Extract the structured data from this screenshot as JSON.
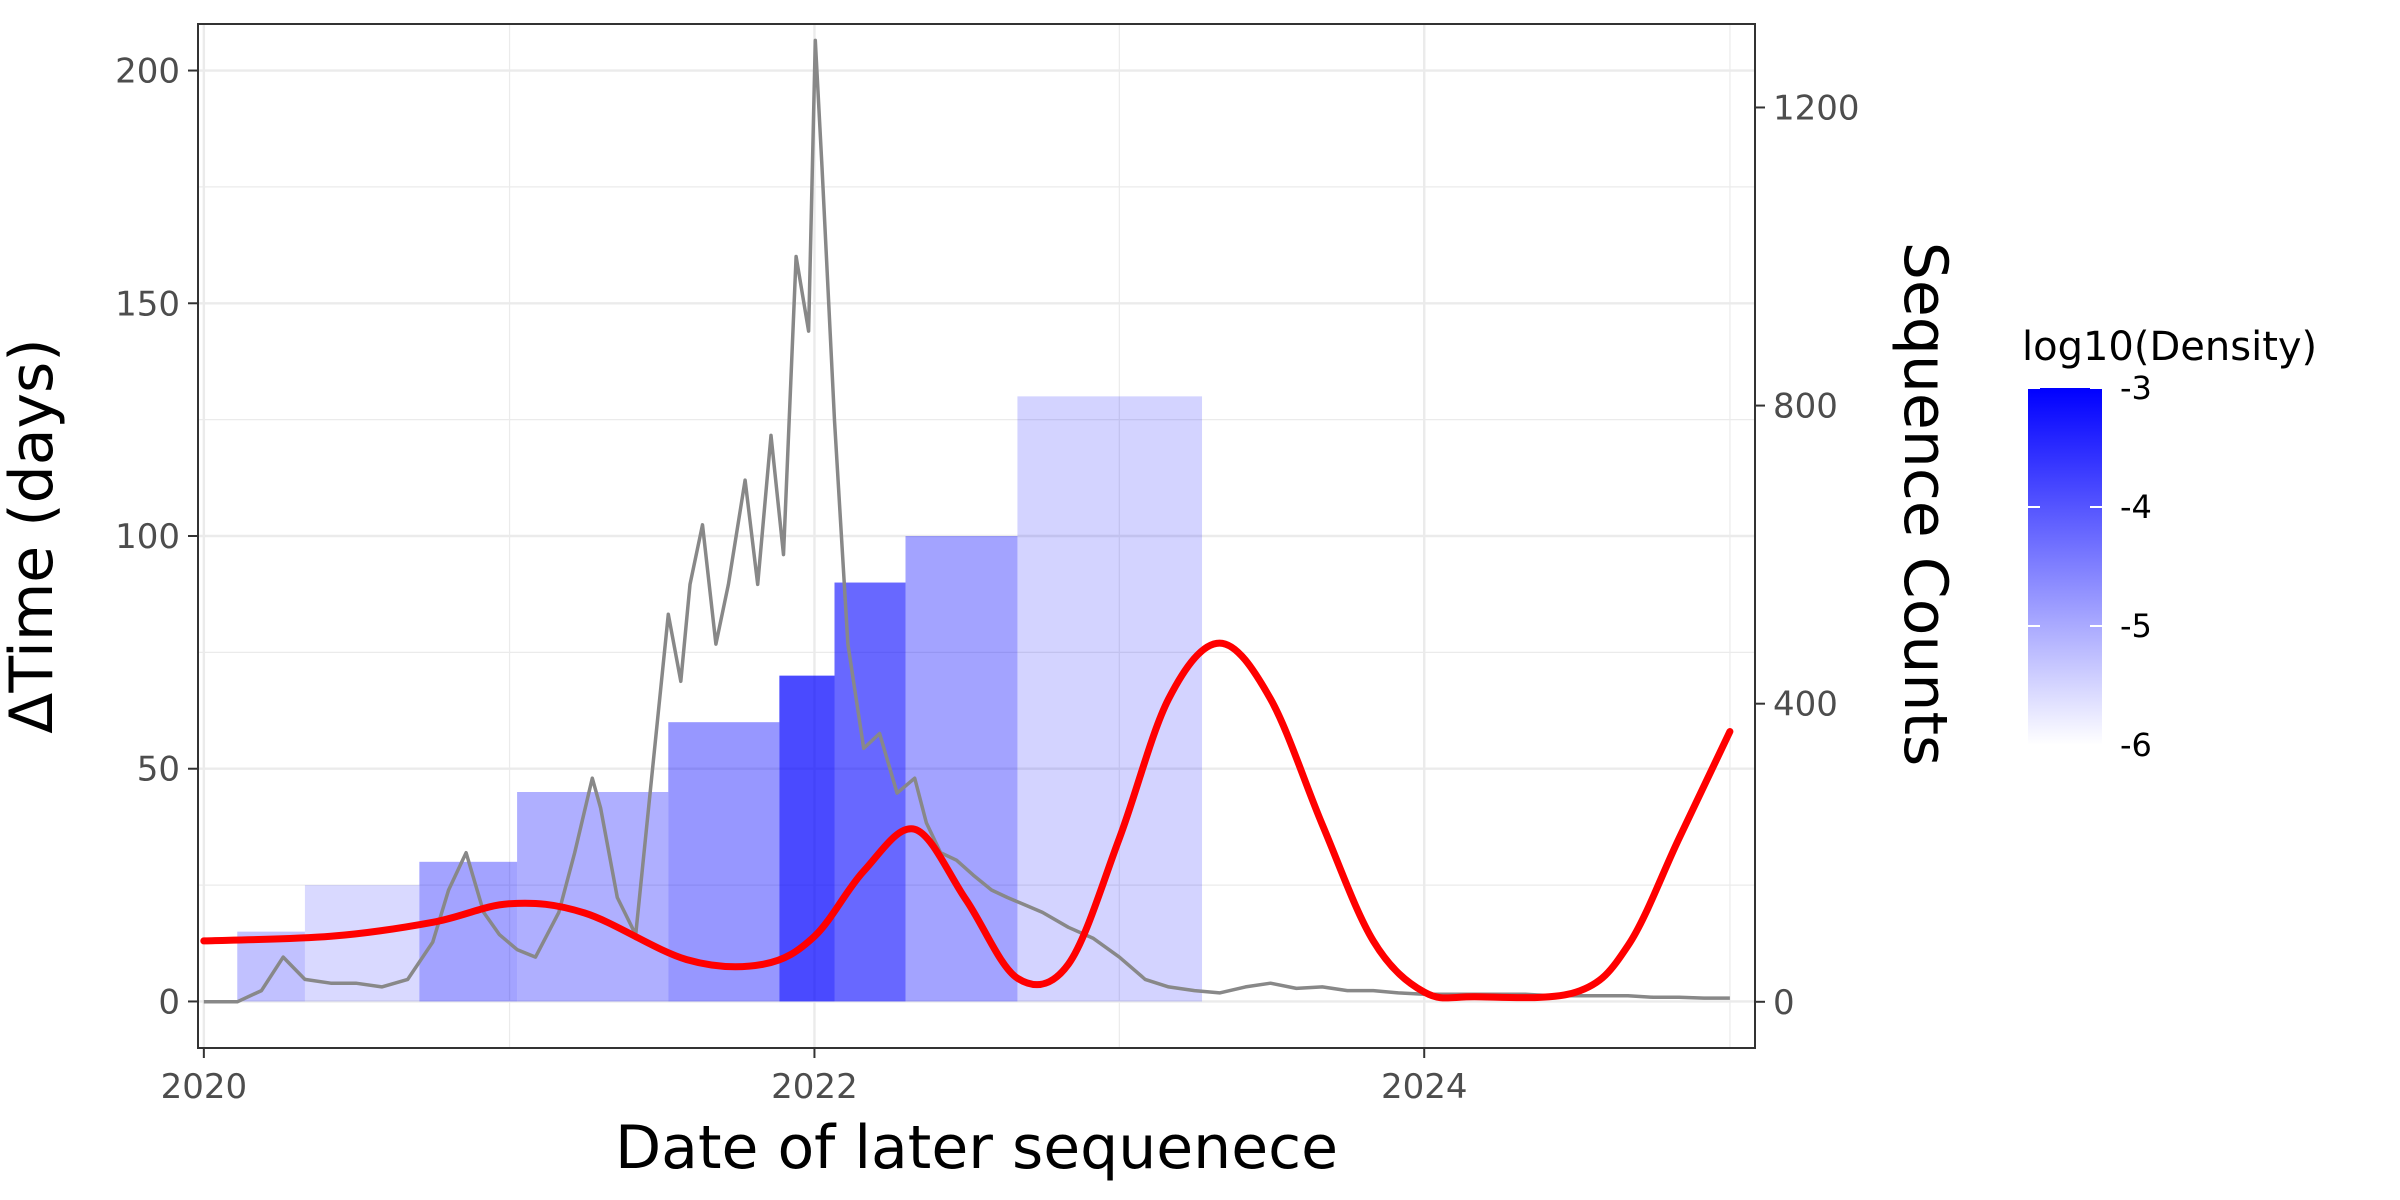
{
  "chart_data": {
    "type": "line",
    "title": "",
    "xlabel": "Date of later sequenece",
    "ylabel": "ΔTime (days)",
    "y2label": "Sequence Counts",
    "x_range": [
      "2019-12-25",
      "2025-01-31"
    ],
    "xticks": [
      {
        "value": "2020-01-01",
        "label": "2020"
      },
      {
        "value": "2022-01-01",
        "label": "2022"
      },
      {
        "value": "2024-01-01",
        "label": "2024"
      }
    ],
    "ylim": [
      -10,
      210
    ],
    "yticks": [
      0,
      50,
      100,
      150,
      200
    ],
    "y2lim": [
      -62,
      1312
    ],
    "y2ticks": [
      0,
      400,
      800,
      1200
    ],
    "grid": true,
    "legend": {
      "title": "log10(Density)",
      "position": "right",
      "labels": [
        "-3",
        "-4",
        "-5",
        "-6"
      ],
      "range": [
        -6,
        -3
      ],
      "low_color": "#ffffff",
      "high_color": "#0000ff"
    },
    "colors": {
      "counts": "#888888",
      "smooth": "#ff0000",
      "density": "#0000ff"
    },
    "series": [
      {
        "kind": "sequence_counts",
        "axis": "right",
        "x": [
          "2020-01-01",
          "2020-02-10",
          "2020-03-10",
          "2020-04-05",
          "2020-05-01",
          "2020-06-01",
          "2020-07-01",
          "2020-08-01",
          "2020-09-01",
          "2020-10-01",
          "2020-10-20",
          "2020-11-10",
          "2020-12-01",
          "2020-12-20",
          "2021-01-10",
          "2021-02-01",
          "2021-03-01",
          "2021-03-20",
          "2021-04-10",
          "2021-04-20",
          "2021-05-10",
          "2021-06-01",
          "2021-06-20",
          "2021-07-10",
          "2021-07-25",
          "2021-08-05",
          "2021-08-20",
          "2021-09-05",
          "2021-09-20",
          "2021-10-10",
          "2021-10-25",
          "2021-11-10",
          "2021-11-25",
          "2021-12-10",
          "2021-12-25",
          "2022-01-02",
          "2022-01-10",
          "2022-01-25",
          "2022-02-10",
          "2022-03-01",
          "2022-03-20",
          "2022-04-10",
          "2022-05-01",
          "2022-05-15",
          "2022-06-01",
          "2022-06-20",
          "2022-07-10",
          "2022-08-01",
          "2022-08-20",
          "2022-09-10",
          "2022-10-01",
          "2022-11-01",
          "2022-12-01",
          "2023-01-01",
          "2023-02-01",
          "2023-03-01",
          "2023-04-01",
          "2023-05-01",
          "2023-06-01",
          "2023-07-01",
          "2023-08-01",
          "2023-09-01",
          "2023-10-01",
          "2023-11-01",
          "2023-12-01",
          "2024-01-01",
          "2024-02-01",
          "2024-03-01",
          "2024-04-01",
          "2024-05-01",
          "2024-06-01",
          "2024-07-01",
          "2024-08-01",
          "2024-09-01",
          "2024-10-01",
          "2024-11-01",
          "2024-12-01",
          "2025-01-01"
        ],
        "y": [
          0,
          0,
          15,
          60,
          30,
          25,
          25,
          20,
          30,
          80,
          150,
          200,
          120,
          90,
          70,
          60,
          120,
          200,
          300,
          260,
          140,
          90,
          300,
          520,
          430,
          560,
          640,
          480,
          560,
          700,
          560,
          760,
          600,
          1000,
          900,
          1290,
          1120,
          780,
          480,
          340,
          360,
          280,
          300,
          240,
          200,
          190,
          170,
          150,
          140,
          130,
          120,
          100,
          85,
          60,
          30,
          20,
          15,
          12,
          20,
          25,
          18,
          20,
          15,
          15,
          12,
          10,
          10,
          10,
          10,
          10,
          8,
          8,
          8,
          8,
          6,
          6,
          5,
          5
        ]
      },
      {
        "kind": "smooth",
        "axis": "left",
        "x": [
          "2020-01-01",
          "2020-06-01",
          "2020-10-01",
          "2021-01-01",
          "2021-04-01",
          "2021-08-01",
          "2021-11-01",
          "2022-01-01",
          "2022-03-01",
          "2022-05-01",
          "2022-07-01",
          "2022-09-01",
          "2022-11-01",
          "2023-01-01",
          "2023-03-01",
          "2023-05-01",
          "2023-07-01",
          "2023-09-01",
          "2023-11-01",
          "2024-01-01",
          "2024-03-01",
          "2024-07-01",
          "2024-09-01",
          "2024-11-01",
          "2025-01-01"
        ],
        "y": [
          13,
          14,
          17,
          21,
          19,
          9,
          8,
          14,
          28,
          37,
          22,
          5,
          8,
          35,
          65,
          77,
          65,
          38,
          13,
          2,
          1,
          2,
          12,
          35,
          58
        ]
      }
    ],
    "density_bands": [
      {
        "x0": "2020-02-10",
        "x1": "2020-05-01",
        "ymax": 15,
        "level": -5.3
      },
      {
        "x0": "2020-05-01",
        "x1": "2020-09-15",
        "ymax": 25,
        "level": -5.7
      },
      {
        "x0": "2020-09-15",
        "x1": "2021-01-10",
        "ymax": 30,
        "level": -4.8
      },
      {
        "x0": "2021-01-10",
        "x1": "2021-07-10",
        "ymax": 45,
        "level": -5.0
      },
      {
        "x0": "2021-07-10",
        "x1": "2021-11-20",
        "ymax": 60,
        "level": -4.6
      },
      {
        "x0": "2021-11-20",
        "x1": "2022-01-25",
        "ymax": 70,
        "level": -3.3
      },
      {
        "x0": "2022-01-25",
        "x1": "2022-04-20",
        "ymax": 90,
        "level": -3.8
      },
      {
        "x0": "2022-04-20",
        "x1": "2022-09-01",
        "ymax": 100,
        "level": -4.8
      },
      {
        "x0": "2022-09-01",
        "x1": "2023-04-10",
        "ymax": 130,
        "level": -5.6
      }
    ]
  }
}
